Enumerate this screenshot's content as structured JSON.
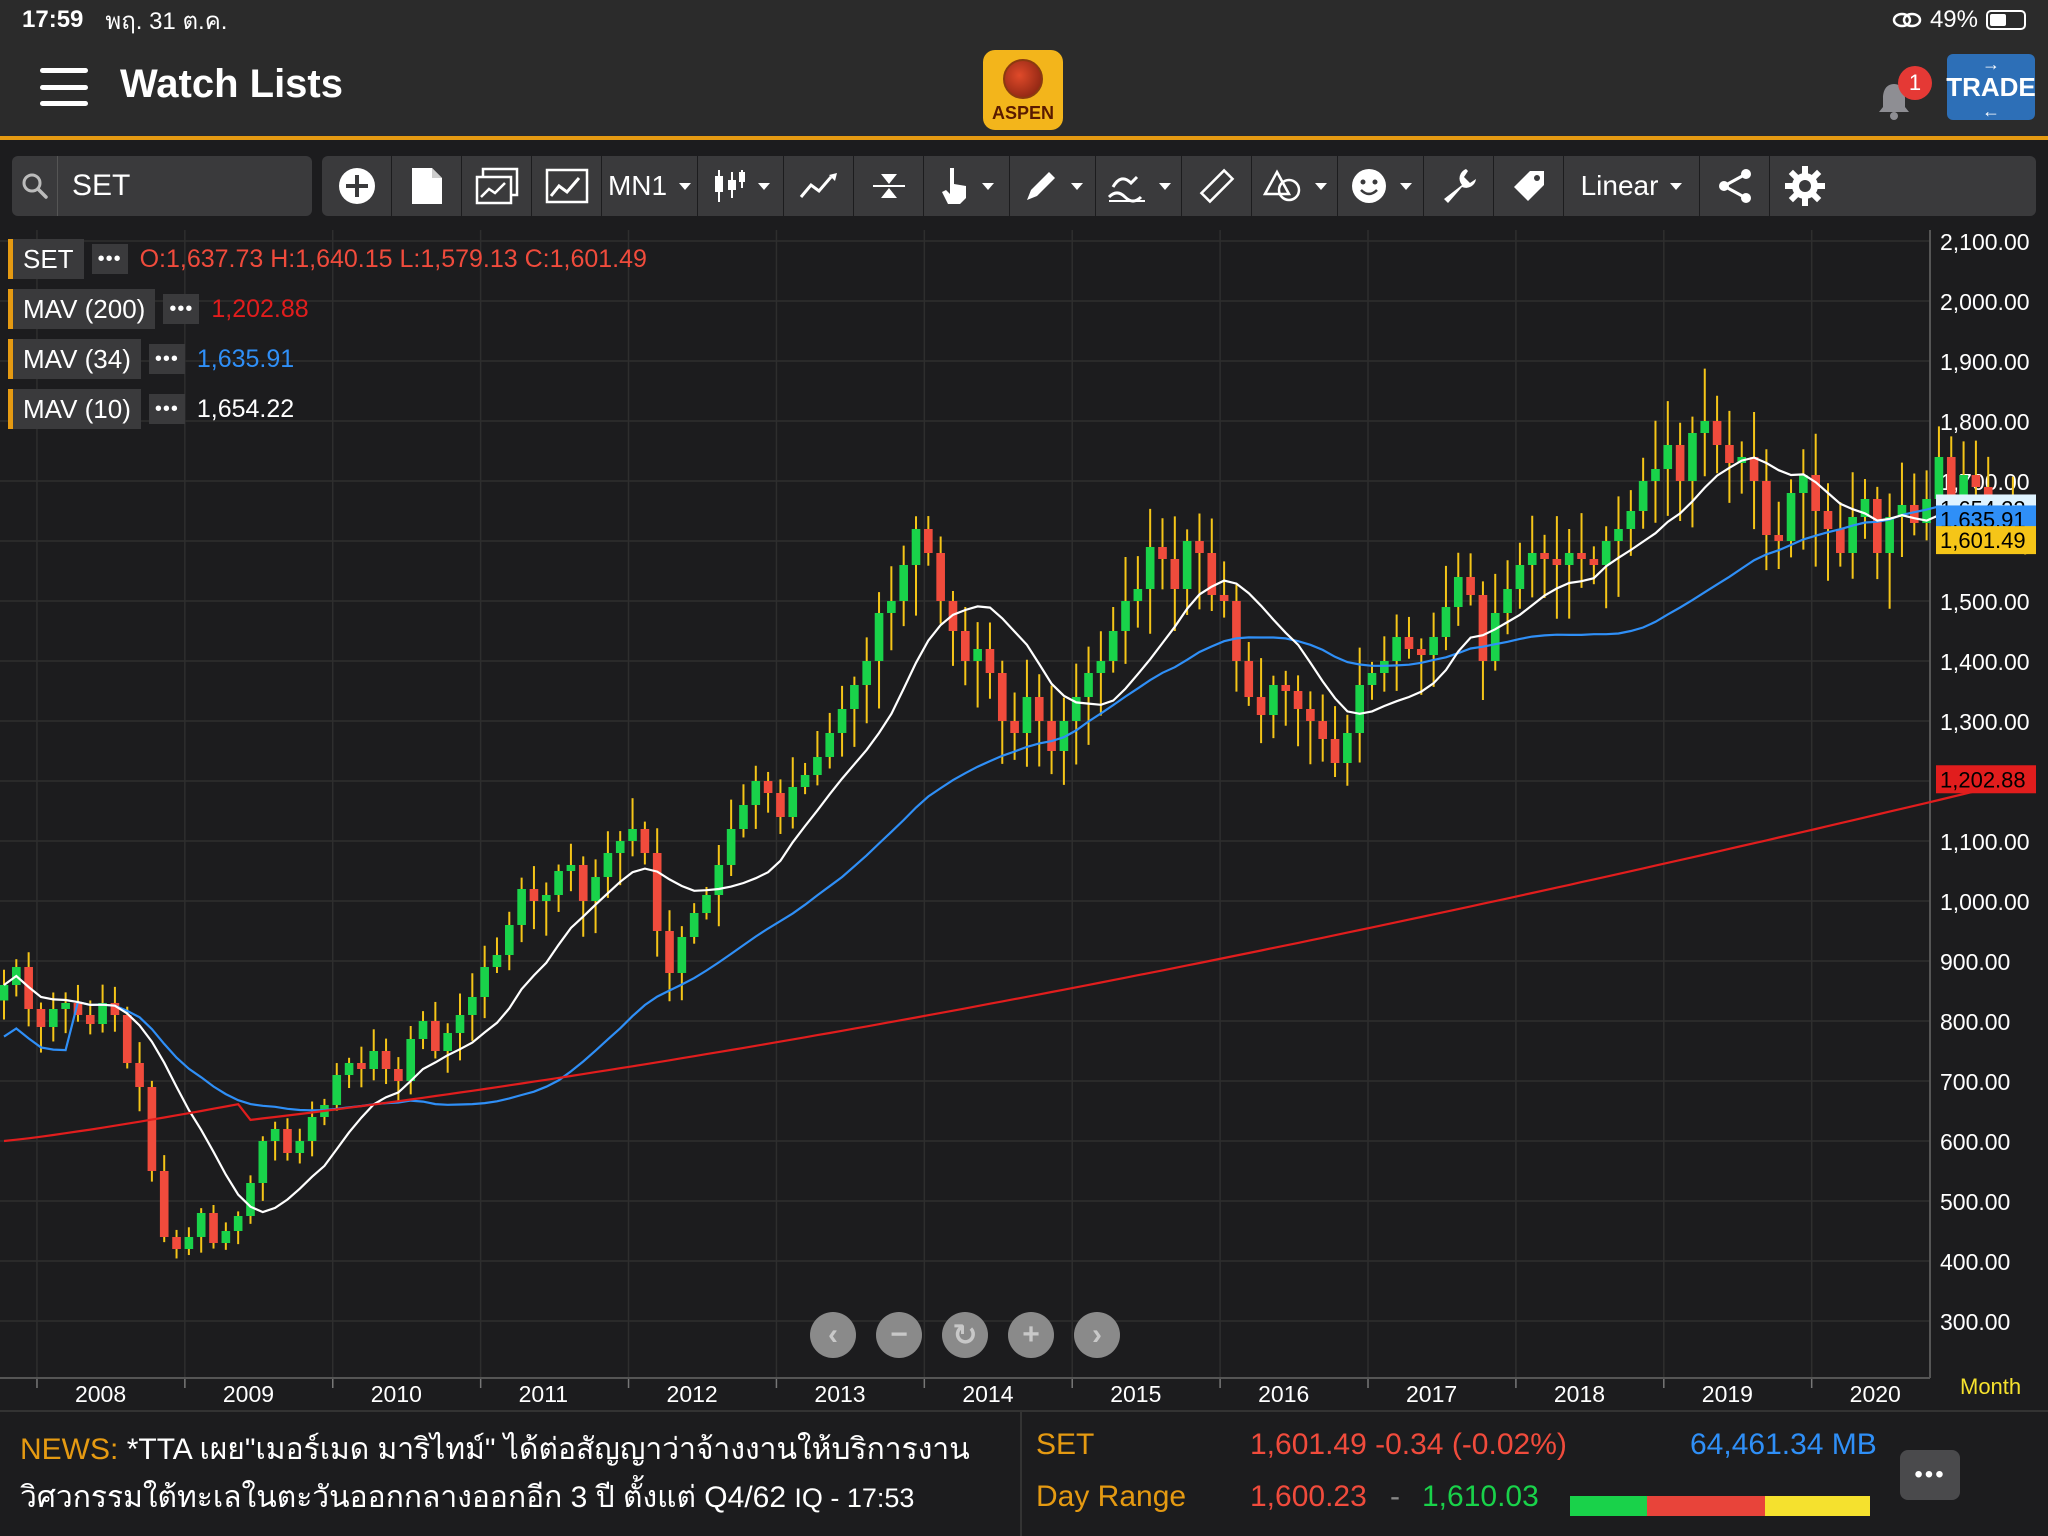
{
  "status": {
    "time": "17:59",
    "date": "พฤ. 31 ต.ค.",
    "battery": "49%"
  },
  "header": {
    "title": "Watch Lists",
    "logo_text": "ASPEN",
    "notification_count": "1",
    "trade_label": "TRADE"
  },
  "toolbar": {
    "search_value": "SET",
    "timeframe": "MN1",
    "scale": "Linear"
  },
  "legend": [
    {
      "label": "SET",
      "value": "O:1,637.73  H:1,640.15  L:1,579.13  C:1,601.49",
      "color": "#f04b3c"
    },
    {
      "label": "MAV (200)",
      "value": "1,202.88",
      "color": "#e11d1d"
    },
    {
      "label": "MAV (34)",
      "value": "1,635.91",
      "color": "#2f8ff7"
    },
    {
      "label": "MAV (10)",
      "value": "1,654.22",
      "color": "#ffffff"
    }
  ],
  "chart_data": {
    "type": "candlestick",
    "interval": "monthly",
    "symbol": "SET",
    "x_ticks": [
      "2008",
      "2009",
      "2010",
      "2011",
      "2012",
      "2013",
      "2014",
      "2015",
      "2016",
      "2017",
      "2018",
      "2019",
      "2020"
    ],
    "y_ticks": [
      "2,100.00",
      "2,000.00",
      "1,900.00",
      "1,800.00",
      "1,700.00",
      "1,600.00",
      "1,500.00",
      "1,400.00",
      "1,300.00",
      "1,200.00",
      "1,100.00",
      "1,000.00",
      "900.00",
      "800.00",
      "700.00",
      "600.00",
      "500.00",
      "400.00",
      "300.00"
    ],
    "ylim": [
      250,
      2130
    ],
    "x_range": [
      2007.75,
      2020.8
    ],
    "closes": [
      860,
      890,
      820,
      790,
      820,
      830,
      810,
      795,
      830,
      810,
      730,
      690,
      550,
      440,
      420,
      440,
      480,
      430,
      450,
      475,
      530,
      600,
      620,
      580,
      600,
      640,
      660,
      710,
      730,
      720,
      750,
      720,
      700,
      770,
      800,
      750,
      780,
      810,
      840,
      890,
      910,
      960,
      1020,
      1000,
      1010,
      1050,
      1060,
      1000,
      1040,
      1080,
      1100,
      1120,
      1080,
      950,
      880,
      940,
      980,
      1010,
      1060,
      1120,
      1160,
      1200,
      1180,
      1140,
      1190,
      1210,
      1240,
      1280,
      1320,
      1360,
      1400,
      1480,
      1500,
      1560,
      1620,
      1580,
      1500,
      1450,
      1400,
      1420,
      1380,
      1300,
      1280,
      1340,
      1300,
      1250,
      1300,
      1340,
      1380,
      1400,
      1450,
      1500,
      1520,
      1590,
      1570,
      1520,
      1600,
      1580,
      1510,
      1500,
      1400,
      1340,
      1310,
      1360,
      1350,
      1320,
      1300,
      1270,
      1230,
      1280,
      1360,
      1380,
      1400,
      1440,
      1420,
      1410,
      1440,
      1490,
      1540,
      1510,
      1400,
      1480,
      1520,
      1560,
      1580,
      1570,
      1560,
      1580,
      1570,
      1560,
      1600,
      1620,
      1650,
      1700,
      1720,
      1760,
      1700,
      1780,
      1800,
      1760,
      1730,
      1740,
      1700,
      1610,
      1600,
      1680,
      1710,
      1650,
      1620,
      1580,
      1640,
      1670,
      1580,
      1640,
      1660,
      1630,
      1670,
      1740,
      1650,
      1710,
      1690,
      1640,
      1660,
      1620,
      1601.49
    ],
    "ma10": {
      "name": "MAV (10)",
      "last": 1654.22
    },
    "ma34": {
      "name": "MAV (34)",
      "last": 1635.91
    },
    "ma200": {
      "name": "MAV (200)",
      "last": 1202.88,
      "start": 600
    },
    "price_tags": [
      {
        "value": "1,654.22",
        "price": 1654.22,
        "bg": "#dff3ff",
        "fg": "#000000"
      },
      {
        "value": "1,635.91",
        "price": 1635.91,
        "bg": "#2f8ff7",
        "fg": "#000000"
      },
      {
        "value": "1,601.49",
        "price": 1601.49,
        "bg": "#f5c518",
        "fg": "#000000"
      },
      {
        "value": "1,202.88",
        "price": 1202.88,
        "bg": "#e11d1d",
        "fg": "#000000"
      }
    ],
    "colors": {
      "up": "#19d24a",
      "down": "#f04b3c",
      "wick": "#f5c518",
      "grid": "#2e2e2e",
      "background": "#1c1c1e"
    },
    "axis_corner_label": "Month"
  },
  "news": {
    "label": "NEWS:",
    "line1": "*TTA เผย\"เมอร์เมด มาริไทม์\" ได้ต่อสัญญาว่าจ้างงานให้บริการงาน",
    "line2": "วิศวกรรมใต้ทะเลในตะวันออกกลางออกอีก 3 ปี ตั้งแต่ Q4/62",
    "source": "IQ - 17:53"
  },
  "quote": {
    "symbol": "SET",
    "price_change": "1,601.49 -0.34 (-0.02%)",
    "volume": "64,461.34 MB",
    "range_label": "Day Range",
    "range_low": "1,600.23",
    "range_sep": "-",
    "range_high": "1,610.03"
  }
}
